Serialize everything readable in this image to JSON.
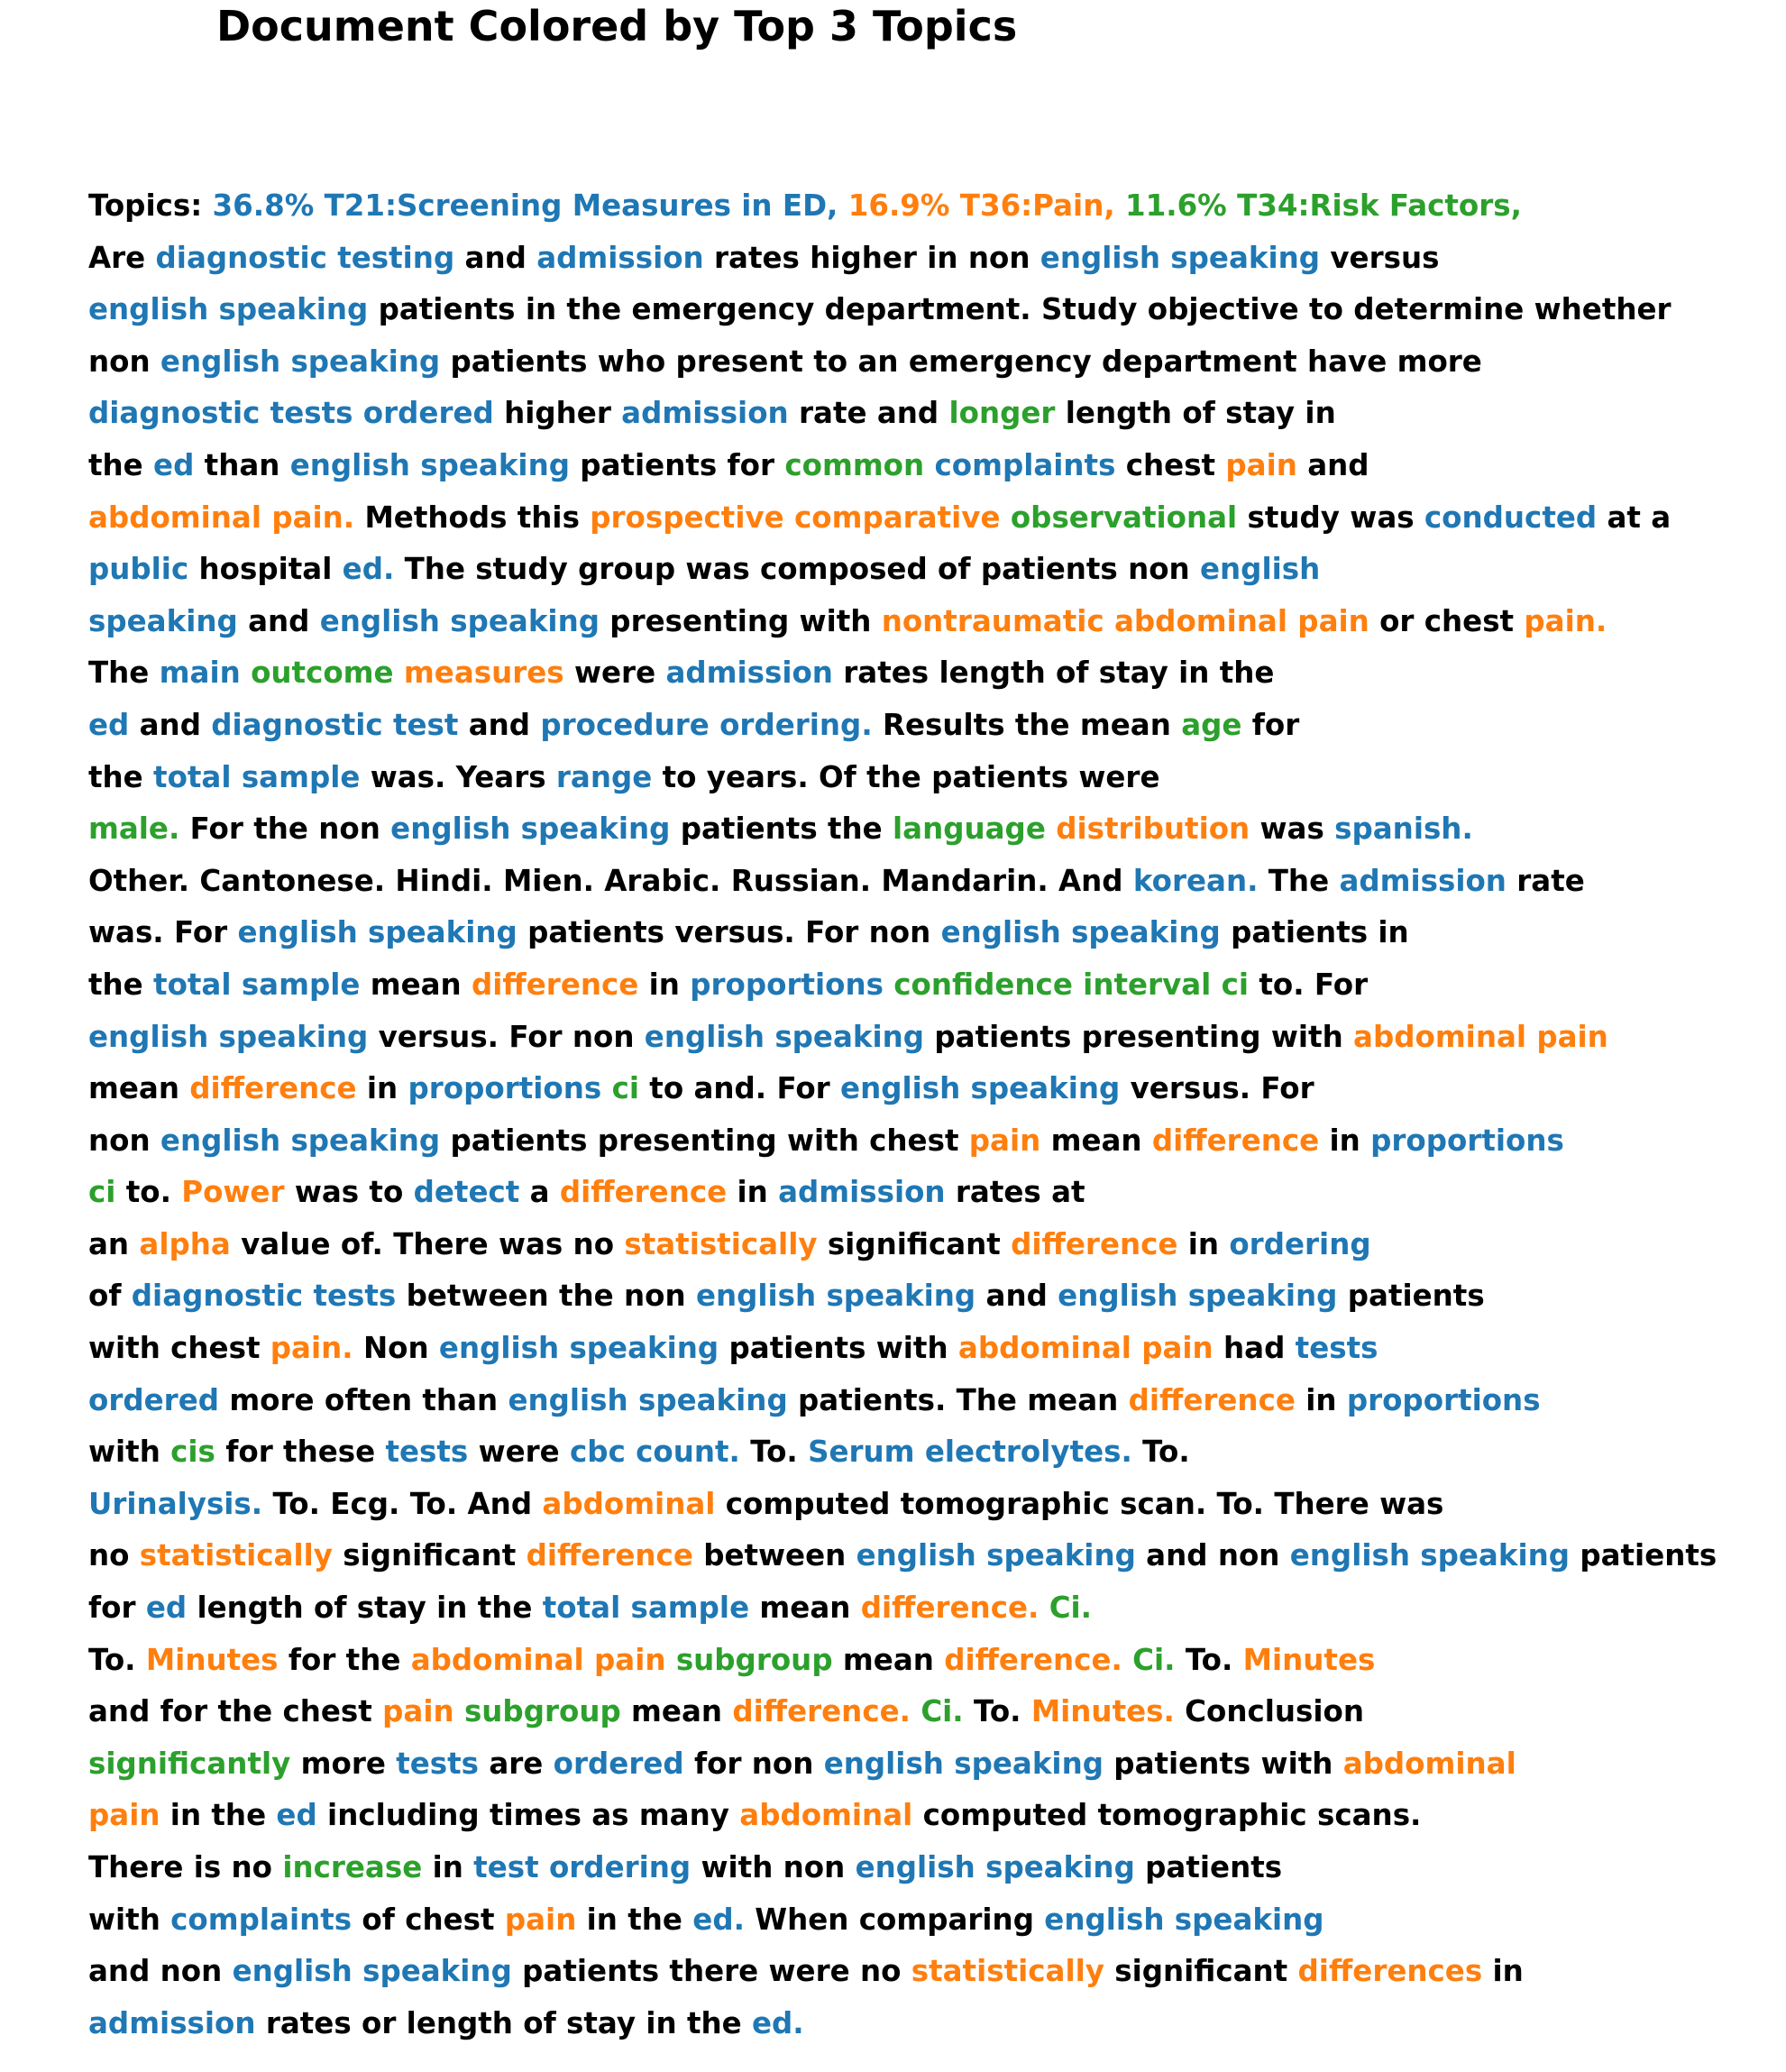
{
  "title": "Document Colored by Top 3 Topics",
  "colors": {
    "plain": "#000000",
    "t21": "#1f77b4",
    "t36": "#ff7f0e",
    "t34": "#2ca02c"
  },
  "topics": [
    {
      "pct": "36.8%",
      "label": "T21:Screening Measures in ED",
      "color": "t21"
    },
    {
      "pct": "16.9%",
      "label": "T36:Pain",
      "color": "t36"
    },
    {
      "pct": "11.6%",
      "label": "T34:Risk Factors",
      "color": "t34"
    }
  ],
  "lines": [
    [
      [
        "Topics: ",
        "plain"
      ],
      [
        "36.8% T21:Screening Measures in ED, ",
        "t21"
      ],
      [
        "16.9% T36:Pain, ",
        "t36"
      ],
      [
        "11.6% T34:Risk Factors,",
        "t34"
      ]
    ],
    [
      [
        "Are ",
        "plain"
      ],
      [
        "diagnostic testing",
        "t21"
      ],
      [
        " and ",
        "plain"
      ],
      [
        "admission",
        "t21"
      ],
      [
        " rates higher in non ",
        "plain"
      ],
      [
        "english speaking",
        "t21"
      ],
      [
        " versus",
        "plain"
      ]
    ],
    [
      [
        "english speaking",
        "t21"
      ],
      [
        " patients in the emergency department. Study objective to determine whether",
        "plain"
      ]
    ],
    [
      [
        "non ",
        "plain"
      ],
      [
        "english speaking",
        "t21"
      ],
      [
        " patients who present to an emergency department have more",
        "plain"
      ]
    ],
    [
      [
        "diagnostic tests ordered",
        "t21"
      ],
      [
        " higher ",
        "plain"
      ],
      [
        "admission",
        "t21"
      ],
      [
        " rate and ",
        "plain"
      ],
      [
        "longer",
        "t34"
      ],
      [
        " length of stay in",
        "plain"
      ]
    ],
    [
      [
        "the ",
        "plain"
      ],
      [
        "ed",
        "t21"
      ],
      [
        " than ",
        "plain"
      ],
      [
        "english speaking",
        "t21"
      ],
      [
        " patients for ",
        "plain"
      ],
      [
        "common",
        "t34"
      ],
      [
        " ",
        "plain"
      ],
      [
        "complaints",
        "t21"
      ],
      [
        " chest ",
        "plain"
      ],
      [
        "pain",
        "t36"
      ],
      [
        " and",
        "plain"
      ]
    ],
    [
      [
        "abdominal pain.",
        "t36"
      ],
      [
        " Methods this ",
        "plain"
      ],
      [
        "prospective comparative",
        "t36"
      ],
      [
        " ",
        "plain"
      ],
      [
        "observational",
        "t34"
      ],
      [
        " study was ",
        "plain"
      ],
      [
        "conducted",
        "t21"
      ],
      [
        " at a",
        "plain"
      ]
    ],
    [
      [
        "public",
        "t21"
      ],
      [
        " hospital ",
        "plain"
      ],
      [
        "ed.",
        "t21"
      ],
      [
        " The study group was composed of patients non ",
        "plain"
      ],
      [
        "english",
        "t21"
      ]
    ],
    [
      [
        "speaking",
        "t21"
      ],
      [
        " and ",
        "plain"
      ],
      [
        "english speaking",
        "t21"
      ],
      [
        " presenting with ",
        "plain"
      ],
      [
        "nontraumatic abdominal pain",
        "t36"
      ],
      [
        " or chest ",
        "plain"
      ],
      [
        "pain.",
        "t36"
      ]
    ],
    [
      [
        "The ",
        "plain"
      ],
      [
        "main",
        "t21"
      ],
      [
        " ",
        "plain"
      ],
      [
        "outcome",
        "t34"
      ],
      [
        " ",
        "plain"
      ],
      [
        "measures",
        "t36"
      ],
      [
        " were ",
        "plain"
      ],
      [
        "admission",
        "t21"
      ],
      [
        " rates length of stay in the",
        "plain"
      ]
    ],
    [
      [
        "ed",
        "t21"
      ],
      [
        " and ",
        "plain"
      ],
      [
        "diagnostic test",
        "t21"
      ],
      [
        " and ",
        "plain"
      ],
      [
        "procedure ordering.",
        "t21"
      ],
      [
        " Results the mean ",
        "plain"
      ],
      [
        "age",
        "t34"
      ],
      [
        " for",
        "plain"
      ]
    ],
    [
      [
        "the ",
        "plain"
      ],
      [
        "total sample",
        "t21"
      ],
      [
        " was. Years ",
        "plain"
      ],
      [
        "range",
        "t21"
      ],
      [
        " to years. Of the patients were",
        "plain"
      ]
    ],
    [
      [
        "male.",
        "t34"
      ],
      [
        " For the non ",
        "plain"
      ],
      [
        "english speaking",
        "t21"
      ],
      [
        " patients the ",
        "plain"
      ],
      [
        "language",
        "t34"
      ],
      [
        " ",
        "plain"
      ],
      [
        "distribution",
        "t36"
      ],
      [
        " was ",
        "plain"
      ],
      [
        "spanish.",
        "t21"
      ]
    ],
    [
      [
        "Other. Cantonese. Hindi. Mien. Arabic. Russian. Mandarin. And ",
        "plain"
      ],
      [
        "korean.",
        "t21"
      ],
      [
        " The ",
        "plain"
      ],
      [
        "admission",
        "t21"
      ],
      [
        " rate",
        "plain"
      ]
    ],
    [
      [
        "was. For ",
        "plain"
      ],
      [
        "english speaking",
        "t21"
      ],
      [
        " patients versus. For non ",
        "plain"
      ],
      [
        "english speaking",
        "t21"
      ],
      [
        " patients in",
        "plain"
      ]
    ],
    [
      [
        "the ",
        "plain"
      ],
      [
        "total sample",
        "t21"
      ],
      [
        " mean ",
        "plain"
      ],
      [
        "difference",
        "t36"
      ],
      [
        " in ",
        "plain"
      ],
      [
        "proportions",
        "t21"
      ],
      [
        " ",
        "plain"
      ],
      [
        "confidence interval ci",
        "t34"
      ],
      [
        " to. For",
        "plain"
      ]
    ],
    [
      [
        "english speaking",
        "t21"
      ],
      [
        " versus. For non ",
        "plain"
      ],
      [
        "english speaking",
        "t21"
      ],
      [
        " patients presenting with ",
        "plain"
      ],
      [
        "abdominal pain",
        "t36"
      ]
    ],
    [
      [
        "mean ",
        "plain"
      ],
      [
        "difference",
        "t36"
      ],
      [
        " in ",
        "plain"
      ],
      [
        "proportions",
        "t21"
      ],
      [
        " ",
        "plain"
      ],
      [
        "ci",
        "t34"
      ],
      [
        " to and. For ",
        "plain"
      ],
      [
        "english speaking",
        "t21"
      ],
      [
        " versus. For",
        "plain"
      ]
    ],
    [
      [
        "non ",
        "plain"
      ],
      [
        "english speaking",
        "t21"
      ],
      [
        " patients presenting with chest ",
        "plain"
      ],
      [
        "pain",
        "t36"
      ],
      [
        " mean ",
        "plain"
      ],
      [
        "difference",
        "t36"
      ],
      [
        " in ",
        "plain"
      ],
      [
        "proportions",
        "t21"
      ]
    ],
    [
      [
        "ci",
        "t34"
      ],
      [
        " to. ",
        "plain"
      ],
      [
        "Power",
        "t36"
      ],
      [
        " was to ",
        "plain"
      ],
      [
        "detect",
        "t21"
      ],
      [
        " a ",
        "plain"
      ],
      [
        "difference",
        "t36"
      ],
      [
        " in ",
        "plain"
      ],
      [
        "admission",
        "t21"
      ],
      [
        " rates at",
        "plain"
      ]
    ],
    [
      [
        "an ",
        "plain"
      ],
      [
        "alpha",
        "t36"
      ],
      [
        " value of. There was no ",
        "plain"
      ],
      [
        "statistically",
        "t36"
      ],
      [
        " significant ",
        "plain"
      ],
      [
        "difference",
        "t36"
      ],
      [
        " in ",
        "plain"
      ],
      [
        "ordering",
        "t21"
      ]
    ],
    [
      [
        "of ",
        "plain"
      ],
      [
        "diagnostic tests",
        "t21"
      ],
      [
        " between the non ",
        "plain"
      ],
      [
        "english speaking",
        "t21"
      ],
      [
        " and ",
        "plain"
      ],
      [
        "english speaking",
        "t21"
      ],
      [
        " patients",
        "plain"
      ]
    ],
    [
      [
        "with chest ",
        "plain"
      ],
      [
        "pain.",
        "t36"
      ],
      [
        " Non ",
        "plain"
      ],
      [
        "english speaking",
        "t21"
      ],
      [
        " patients with ",
        "plain"
      ],
      [
        "abdominal pain",
        "t36"
      ],
      [
        " had ",
        "plain"
      ],
      [
        "tests",
        "t21"
      ]
    ],
    [
      [
        "ordered",
        "t21"
      ],
      [
        " more often than ",
        "plain"
      ],
      [
        "english speaking",
        "t21"
      ],
      [
        " patients. The mean ",
        "plain"
      ],
      [
        "difference",
        "t36"
      ],
      [
        " in ",
        "plain"
      ],
      [
        "proportions",
        "t21"
      ]
    ],
    [
      [
        "with ",
        "plain"
      ],
      [
        "cis",
        "t34"
      ],
      [
        " for these ",
        "plain"
      ],
      [
        "tests",
        "t21"
      ],
      [
        " were ",
        "plain"
      ],
      [
        "cbc count.",
        "t21"
      ],
      [
        " To. ",
        "plain"
      ],
      [
        "Serum electrolytes.",
        "t21"
      ],
      [
        " To.",
        "plain"
      ]
    ],
    [
      [
        "Urinalysis.",
        "t21"
      ],
      [
        " To. Ecg. To. And ",
        "plain"
      ],
      [
        "abdominal",
        "t36"
      ],
      [
        " computed tomographic scan. To. There was",
        "plain"
      ]
    ],
    [
      [
        "no ",
        "plain"
      ],
      [
        "statistically",
        "t36"
      ],
      [
        " significant ",
        "plain"
      ],
      [
        "difference",
        "t36"
      ],
      [
        " between ",
        "plain"
      ],
      [
        "english speaking",
        "t21"
      ],
      [
        " and non ",
        "plain"
      ],
      [
        "english speaking",
        "t21"
      ],
      [
        " patients",
        "plain"
      ]
    ],
    [
      [
        "for ",
        "plain"
      ],
      [
        "ed",
        "t21"
      ],
      [
        " length of stay in the ",
        "plain"
      ],
      [
        "total sample",
        "t21"
      ],
      [
        " mean ",
        "plain"
      ],
      [
        "difference.",
        "t36"
      ],
      [
        " ",
        "plain"
      ],
      [
        "Ci.",
        "t34"
      ]
    ],
    [
      [
        "To. ",
        "plain"
      ],
      [
        "Minutes",
        "t36"
      ],
      [
        " for the ",
        "plain"
      ],
      [
        "abdominal pain",
        "t36"
      ],
      [
        " ",
        "plain"
      ],
      [
        "subgroup",
        "t34"
      ],
      [
        " mean ",
        "plain"
      ],
      [
        "difference.",
        "t36"
      ],
      [
        " ",
        "plain"
      ],
      [
        "Ci.",
        "t34"
      ],
      [
        " To. ",
        "plain"
      ],
      [
        "Minutes",
        "t36"
      ]
    ],
    [
      [
        "and for the chest ",
        "plain"
      ],
      [
        "pain",
        "t36"
      ],
      [
        " ",
        "plain"
      ],
      [
        "subgroup",
        "t34"
      ],
      [
        " mean ",
        "plain"
      ],
      [
        "difference.",
        "t36"
      ],
      [
        " ",
        "plain"
      ],
      [
        "Ci.",
        "t34"
      ],
      [
        " To. ",
        "plain"
      ],
      [
        "Minutes.",
        "t36"
      ],
      [
        " Conclusion",
        "plain"
      ]
    ],
    [
      [
        "significantly",
        "t34"
      ],
      [
        " more ",
        "plain"
      ],
      [
        "tests",
        "t21"
      ],
      [
        " are ",
        "plain"
      ],
      [
        "ordered",
        "t21"
      ],
      [
        " for non ",
        "plain"
      ],
      [
        "english speaking",
        "t21"
      ],
      [
        " patients with ",
        "plain"
      ],
      [
        "abdominal",
        "t36"
      ]
    ],
    [
      [
        "pain",
        "t36"
      ],
      [
        " in the ",
        "plain"
      ],
      [
        "ed",
        "t21"
      ],
      [
        " including times as many ",
        "plain"
      ],
      [
        "abdominal",
        "t36"
      ],
      [
        " computed tomographic scans.",
        "plain"
      ]
    ],
    [
      [
        "There is no ",
        "plain"
      ],
      [
        "increase",
        "t34"
      ],
      [
        " in ",
        "plain"
      ],
      [
        "test ordering",
        "t21"
      ],
      [
        " with non ",
        "plain"
      ],
      [
        "english speaking",
        "t21"
      ],
      [
        " patients",
        "plain"
      ]
    ],
    [
      [
        "with ",
        "plain"
      ],
      [
        "complaints",
        "t21"
      ],
      [
        " of chest ",
        "plain"
      ],
      [
        "pain",
        "t36"
      ],
      [
        " in the ",
        "plain"
      ],
      [
        "ed.",
        "t21"
      ],
      [
        " When comparing ",
        "plain"
      ],
      [
        "english speaking",
        "t21"
      ]
    ],
    [
      [
        "and non ",
        "plain"
      ],
      [
        "english speaking",
        "t21"
      ],
      [
        " patients there were no ",
        "plain"
      ],
      [
        "statistically",
        "t36"
      ],
      [
        " significant ",
        "plain"
      ],
      [
        "differences",
        "t36"
      ],
      [
        " in",
        "plain"
      ]
    ],
    [
      [
        "admission",
        "t21"
      ],
      [
        " rates or length of stay in the ",
        "plain"
      ],
      [
        "ed.",
        "t21"
      ]
    ]
  ]
}
